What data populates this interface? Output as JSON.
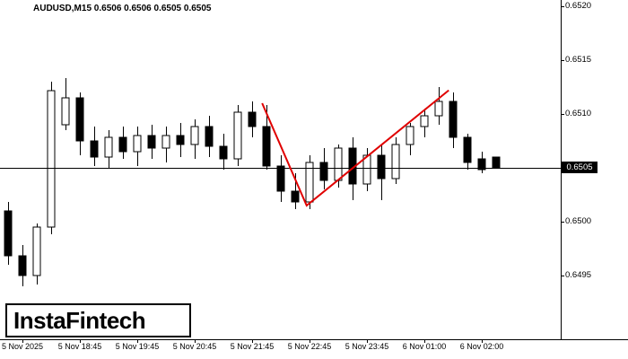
{
  "header": {
    "info_line": "AUDUSD,M15 0.6506 0.6506 0.6505 0.6505"
  },
  "logo": {
    "text": "InstaFintech"
  },
  "chart_data": {
    "type": "candlestick",
    "title": "AUDUSD,M15",
    "symbol": "AUDUSD",
    "timeframe": "M15",
    "current_bar": {
      "open": "0.6506",
      "high": "0.6506",
      "low": "0.6505",
      "close": "0.6505"
    },
    "bid_price": "0.6505",
    "colors": {
      "background": "#ffffff",
      "up_candle": "#ffffff",
      "down_candle": "#000000",
      "outline": "#000000",
      "axis": "#000000",
      "trendline": "#e00000",
      "bid_tag_bg": "#000000",
      "bid_tag_text": "#ffffff"
    },
    "y_axis": {
      "labels": [
        "0.6520",
        "0.6515",
        "0.6510",
        "0.6505",
        "0.6500",
        "0.6495"
      ],
      "grid": false,
      "side": "right"
    },
    "x_axis": {
      "labels": [
        {
          "text": "5 Nov 2025",
          "index": 1
        },
        {
          "text": "5 Nov 18:45",
          "index": 5
        },
        {
          "text": "5 Nov 19:45",
          "index": 9
        },
        {
          "text": "5 Nov 20:45",
          "index": 13
        },
        {
          "text": "5 Nov 21:45",
          "index": 17
        },
        {
          "text": "5 Nov 22:45",
          "index": 21
        },
        {
          "text": "5 Nov 23:45",
          "index": 25
        },
        {
          "text": "6 Nov 01:00",
          "index": 29
        },
        {
          "text": "6 Nov 02:00",
          "index": 33
        }
      ]
    },
    "candles": [
      {
        "o": 0.6501,
        "h": 0.65018,
        "l": 0.6496,
        "c": 0.64968
      },
      {
        "o": 0.64968,
        "h": 0.64978,
        "l": 0.6494,
        "c": 0.6495
      },
      {
        "o": 0.6495,
        "h": 0.64998,
        "l": 0.64942,
        "c": 0.64995
      },
      {
        "o": 0.64995,
        "h": 0.6513,
        "l": 0.64988,
        "c": 0.65122
      },
      {
        "o": 0.6509,
        "h": 0.65133,
        "l": 0.65085,
        "c": 0.65115
      },
      {
        "o": 0.65115,
        "h": 0.6512,
        "l": 0.65062,
        "c": 0.65075
      },
      {
        "o": 0.65075,
        "h": 0.65088,
        "l": 0.65052,
        "c": 0.6506
      },
      {
        "o": 0.6506,
        "h": 0.65085,
        "l": 0.6505,
        "c": 0.65078
      },
      {
        "o": 0.65078,
        "h": 0.65088,
        "l": 0.65058,
        "c": 0.65065
      },
      {
        "o": 0.65065,
        "h": 0.65088,
        "l": 0.65052,
        "c": 0.6508
      },
      {
        "o": 0.6508,
        "h": 0.6509,
        "l": 0.65058,
        "c": 0.65068
      },
      {
        "o": 0.65068,
        "h": 0.65088,
        "l": 0.65055,
        "c": 0.6508
      },
      {
        "o": 0.6508,
        "h": 0.65092,
        "l": 0.6506,
        "c": 0.65072
      },
      {
        "o": 0.65072,
        "h": 0.65095,
        "l": 0.65058,
        "c": 0.65088
      },
      {
        "o": 0.65088,
        "h": 0.65098,
        "l": 0.6506,
        "c": 0.6507
      },
      {
        "o": 0.6507,
        "h": 0.65082,
        "l": 0.65048,
        "c": 0.65058
      },
      {
        "o": 0.65058,
        "h": 0.65108,
        "l": 0.65052,
        "c": 0.65102
      },
      {
        "o": 0.65102,
        "h": 0.65112,
        "l": 0.65078,
        "c": 0.65088
      },
      {
        "o": 0.65088,
        "h": 0.65108,
        "l": 0.65048,
        "c": 0.65052
      },
      {
        "o": 0.65052,
        "h": 0.65062,
        "l": 0.65018,
        "c": 0.65028
      },
      {
        "o": 0.65028,
        "h": 0.65045,
        "l": 0.65012,
        "c": 0.65018
      },
      {
        "o": 0.65018,
        "h": 0.65062,
        "l": 0.65012,
        "c": 0.65055
      },
      {
        "o": 0.65055,
        "h": 0.65068,
        "l": 0.6503,
        "c": 0.65038
      },
      {
        "o": 0.65038,
        "h": 0.65072,
        "l": 0.65032,
        "c": 0.65068
      },
      {
        "o": 0.65068,
        "h": 0.65078,
        "l": 0.6502,
        "c": 0.65035
      },
      {
        "o": 0.65035,
        "h": 0.65068,
        "l": 0.65028,
        "c": 0.65062
      },
      {
        "o": 0.65062,
        "h": 0.65072,
        "l": 0.6502,
        "c": 0.6504
      },
      {
        "o": 0.6504,
        "h": 0.65078,
        "l": 0.65035,
        "c": 0.65072
      },
      {
        "o": 0.65072,
        "h": 0.65092,
        "l": 0.65062,
        "c": 0.65088
      },
      {
        "o": 0.65088,
        "h": 0.65105,
        "l": 0.65078,
        "c": 0.65098
      },
      {
        "o": 0.65098,
        "h": 0.65125,
        "l": 0.6509,
        "c": 0.65112
      },
      {
        "o": 0.65112,
        "h": 0.6512,
        "l": 0.65068,
        "c": 0.65078
      },
      {
        "o": 0.65078,
        "h": 0.65082,
        "l": 0.65048,
        "c": 0.65055
      },
      {
        "o": 0.65058,
        "h": 0.65065,
        "l": 0.65045,
        "c": 0.65048
      },
      {
        "o": 0.6506,
        "h": 0.6506,
        "l": 0.6505,
        "c": 0.6505
      }
    ],
    "trendline": {
      "color": "#e00000",
      "points": [
        {
          "index": 17.7,
          "price": 0.6511
        },
        {
          "index": 20.8,
          "price": 0.65015
        },
        {
          "index": 30.7,
          "price": 0.65122
        }
      ]
    }
  }
}
